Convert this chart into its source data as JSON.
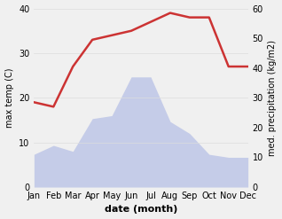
{
  "months": [
    "Jan",
    "Feb",
    "Mar",
    "Apr",
    "May",
    "Jun",
    "Jul",
    "Aug",
    "Sep",
    "Oct",
    "Nov",
    "Dec"
  ],
  "temperature": [
    19,
    18,
    27,
    33,
    34,
    35,
    37,
    39,
    38,
    38,
    27,
    27
  ],
  "precipitation": [
    11,
    14,
    12,
    23,
    24,
    37,
    37,
    22,
    18,
    11,
    10,
    10
  ],
  "temp_color": "#cc3333",
  "precip_fill_color": "#c5cce8",
  "temp_ylim": [
    0,
    40
  ],
  "precip_ylim": [
    0,
    60
  ],
  "xlabel": "date (month)",
  "ylabel_left": "max temp (C)",
  "ylabel_right": "med. precipitation (kg/m2)",
  "bg_color": "#f0f0f0",
  "plot_bg_color": "#ffffff",
  "temp_linewidth": 1.8,
  "xlabel_fontsize": 8,
  "ylabel_fontsize": 7,
  "tick_fontsize": 7
}
